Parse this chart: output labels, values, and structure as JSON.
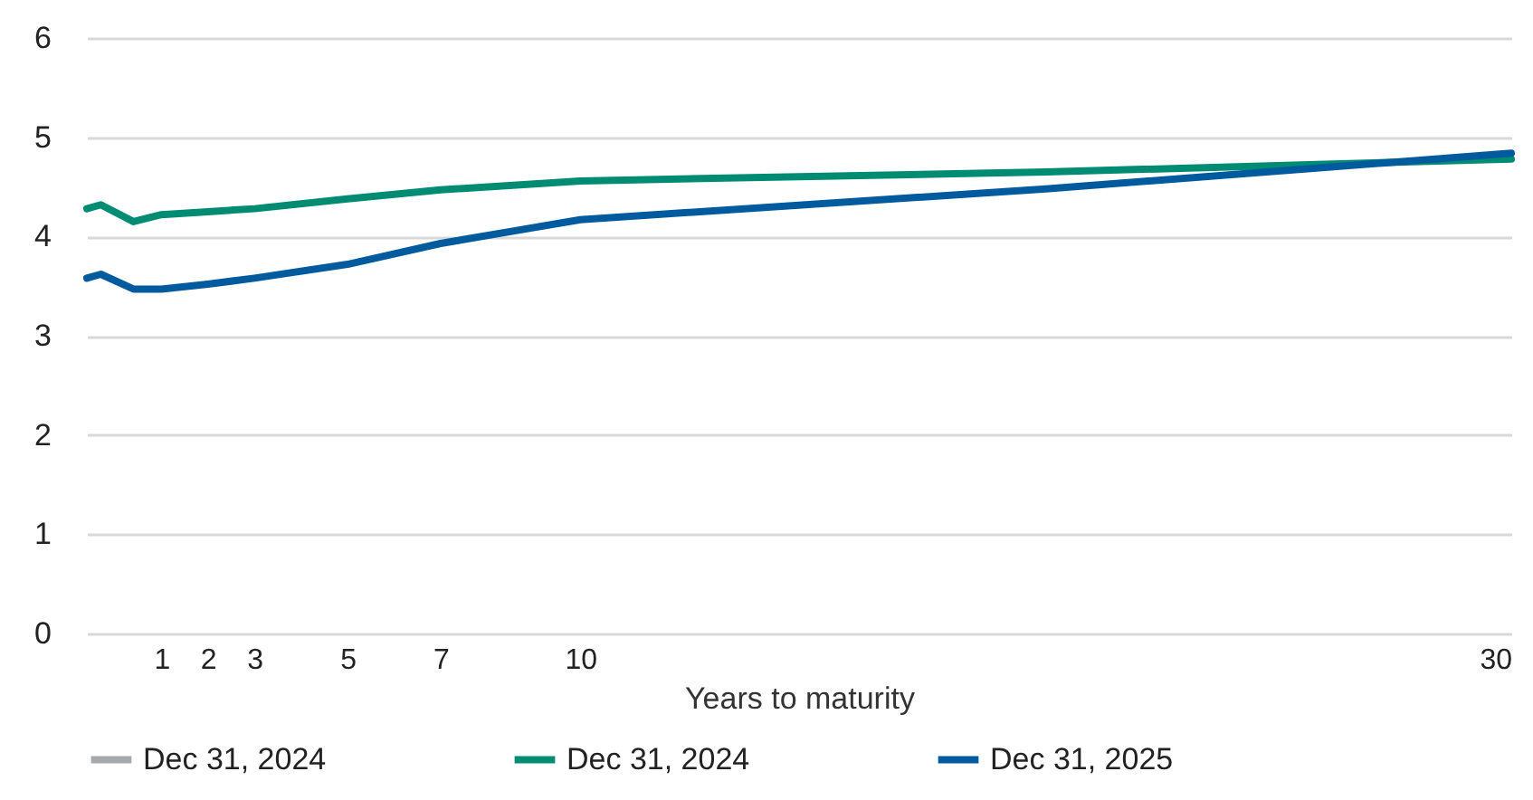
{
  "chart_data": {
    "type": "line",
    "xlabel": "Years to maturity",
    "x": [
      -0.6,
      -0.3,
      0.4,
      1,
      2,
      3,
      5,
      7,
      10,
      20,
      30
    ],
    "xlim": [
      -0.6,
      30
    ],
    "xticks": [
      1,
      2,
      3,
      5,
      7,
      10,
      30
    ],
    "ylim": [
      0,
      6
    ],
    "yticks": [
      0,
      1,
      2,
      3,
      4,
      5,
      6
    ],
    "series": [
      {
        "name": "Dec 31, 2024",
        "color": "#a7a8a9",
        "values": [
          null,
          null,
          null,
          null,
          null,
          null,
          null,
          null,
          null,
          null,
          null
        ]
      },
      {
        "name": "Dec 31, 2024",
        "color": "#008c73",
        "values": [
          4.28,
          4.32,
          4.15,
          4.22,
          4.25,
          4.28,
          4.38,
          4.47,
          4.56,
          4.65,
          4.78
        ]
      },
      {
        "name": "Dec 31, 2025",
        "color": "#005b9e",
        "values": [
          3.58,
          3.62,
          3.47,
          3.47,
          3.52,
          3.58,
          3.72,
          3.93,
          4.17,
          4.48,
          4.84
        ]
      }
    ],
    "grid": "y",
    "legend": "bottom",
    "line_style": "solid",
    "marker": "none"
  }
}
